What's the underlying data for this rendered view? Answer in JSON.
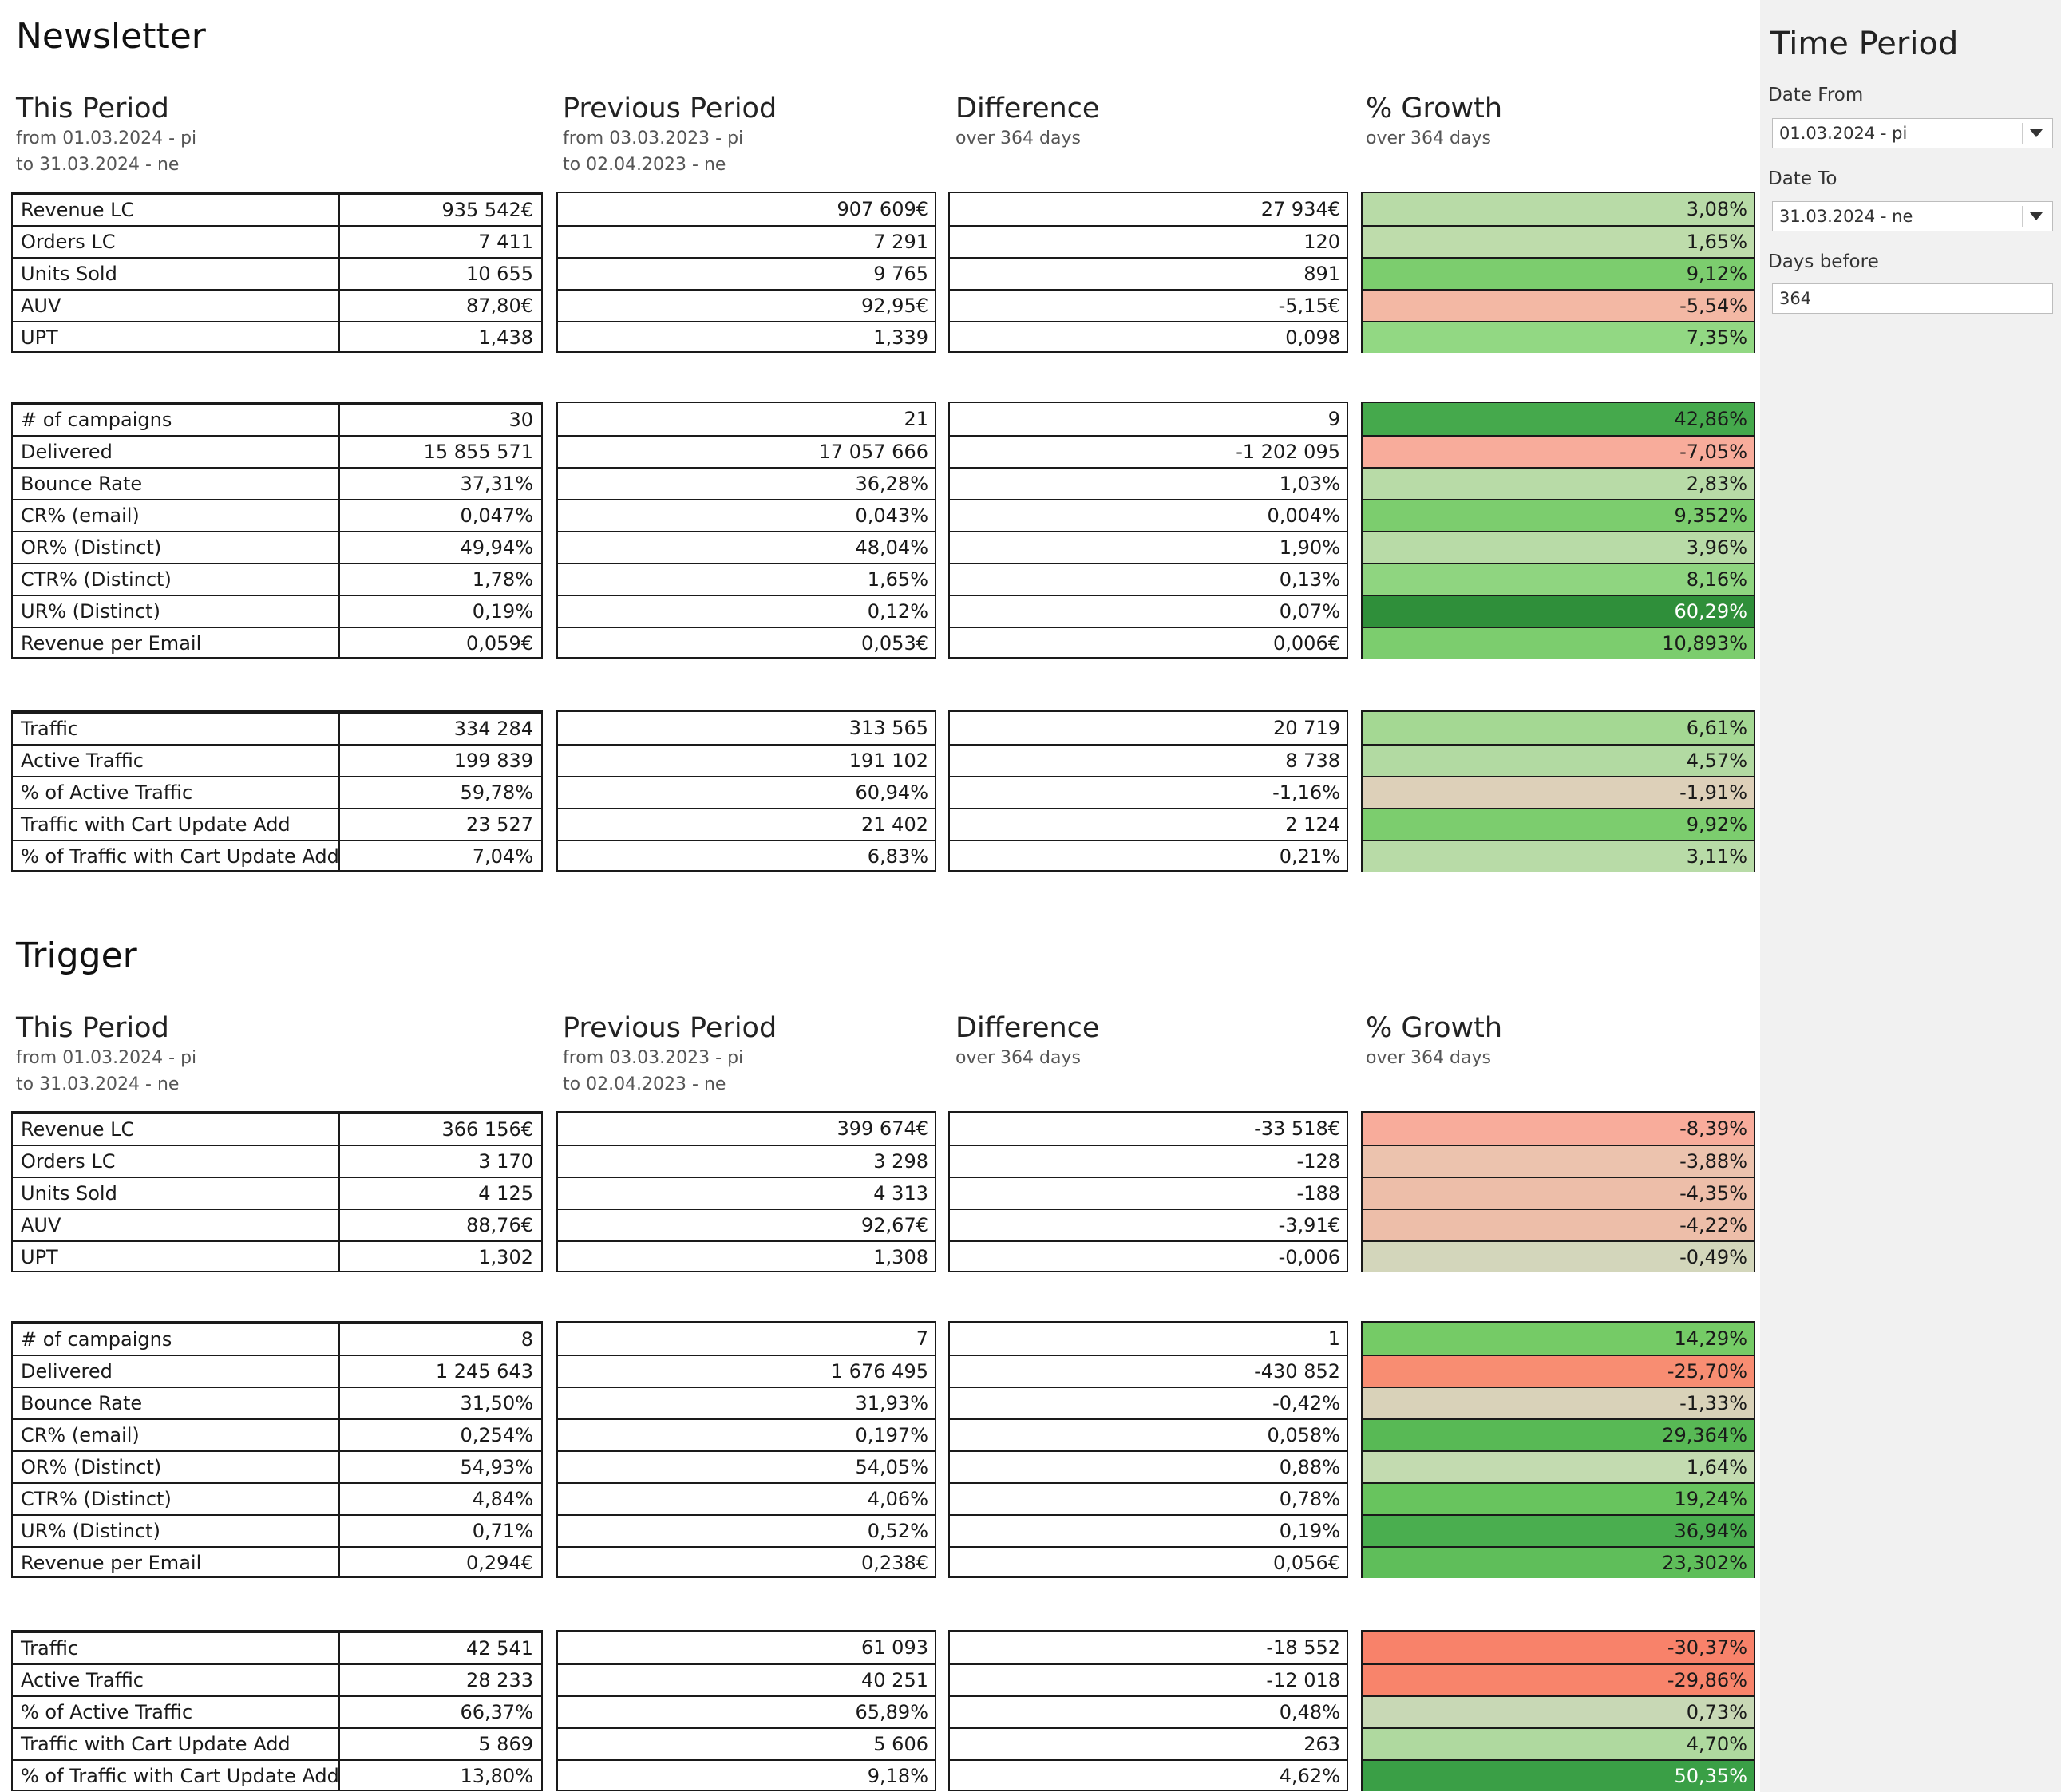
{
  "sidebar": {
    "title": "Time Period",
    "date_from_label": "Date From",
    "date_from_value": "01.03.2024 - pi",
    "date_to_label": "Date To",
    "date_to_value": "31.03.2024 - ne",
    "days_before_label": "Days before",
    "days_before_value": "364"
  },
  "sections": [
    {
      "title": "Newsletter",
      "headers": {
        "this": {
          "title": "This Period",
          "line1": "from 01.03.2024 - pi",
          "line2": "to 31.03.2024 - ne"
        },
        "prev": {
          "title": "Previous Period",
          "line1": "from 03.03.2023 - pi",
          "line2": "to 02.04.2023 - ne"
        },
        "diff": {
          "title": "Difference",
          "line1": "over 364 days"
        },
        "growth": {
          "title": "% Growth",
          "line1": "over 364 days"
        }
      },
      "groups": [
        {
          "rows": [
            {
              "label": "Revenue LC",
              "this": "935 542€",
              "prev": "907 609€",
              "diff": "27 934€",
              "growth": "3,08%",
              "growth_color": "#b8dba7"
            },
            {
              "label": "Orders LC",
              "this": "7 411",
              "prev": "7 291",
              "diff": "120",
              "growth": "1,65%",
              "growth_color": "#bedcab"
            },
            {
              "label": "Units Sold",
              "this": "10 655",
              "prev": "9 765",
              "diff": "891",
              "growth": "9,12%",
              "growth_color": "#7ccd6e"
            },
            {
              "label": "AUV",
              "this": "87,80€",
              "prev": "92,95€",
              "diff": "-5,15€",
              "growth": "-5,54%",
              "growth_color": "#f3b8a4"
            },
            {
              "label": "UPT",
              "this": "1,438",
              "prev": "1,339",
              "diff": "0,098",
              "growth": "7,35%",
              "growth_color": "#92d883"
            }
          ]
        },
        {
          "rows": [
            {
              "label": "# of campaigns",
              "this": "30",
              "prev": "21",
              "diff": "9",
              "growth": "42,86%",
              "growth_color": "#45a94c"
            },
            {
              "label": "Delivered",
              "this": "15 855 571",
              "prev": "17 057 666",
              "diff": "-1 202 095",
              "growth": "-7,05%",
              "growth_color": "#f8ac9b"
            },
            {
              "label": "Bounce Rate",
              "this": "37,31%",
              "prev": "36,28%",
              "diff": "1,03%",
              "growth": "2,83%",
              "growth_color": "#b8dba7"
            },
            {
              "label": "CR% (email)",
              "this": "0,047%",
              "prev": "0,043%",
              "diff": "0,004%",
              "growth": "9,352%",
              "growth_color": "#7ccd6e"
            },
            {
              "label": "OR% (Distinct)",
              "this": "49,94%",
              "prev": "48,04%",
              "diff": "1,90%",
              "growth": "3,96%",
              "growth_color": "#b8dba7"
            },
            {
              "label": "CTR% (Distinct)",
              "this": "1,78%",
              "prev": "1,65%",
              "diff": "0,13%",
              "growth": "8,16%",
              "growth_color": "#8fd580"
            },
            {
              "label": "UR% (Distinct)",
              "this": "0,19%",
              "prev": "0,12%",
              "diff": "0,07%",
              "growth": "60,29%",
              "growth_color": "#2f8f3a",
              "growth_text_color": "#ffffff"
            },
            {
              "label": "Revenue per Email",
              "this": "0,059€",
              "prev": "0,053€",
              "diff": "0,006€",
              "growth": "10,893%",
              "growth_color": "#7ccd6e"
            }
          ]
        },
        {
          "rows": [
            {
              "label": "Traffic",
              "this": "334 284",
              "prev": "313 565",
              "diff": "20 719",
              "growth": "6,61%",
              "growth_color": "#a4d893"
            },
            {
              "label": "Active Traffic",
              "this": "199 839",
              "prev": "191 102",
              "diff": "8 738",
              "growth": "4,57%",
              "growth_color": "#b2daa2"
            },
            {
              "label": "% of Active Traffic",
              "this": "59,78%",
              "prev": "60,94%",
              "diff": "-1,16%",
              "growth": "-1,91%",
              "growth_color": "#ddd0b9"
            },
            {
              "label": "Traffic with Cart Update Add",
              "this": "23 527",
              "prev": "21 402",
              "diff": "2 124",
              "growth": "9,92%",
              "growth_color": "#7ccd6e"
            },
            {
              "label": "% of Traffic with Cart Update Add",
              "this": "7,04%",
              "prev": "6,83%",
              "diff": "0,21%",
              "growth": "3,11%",
              "growth_color": "#b8dba7"
            }
          ]
        }
      ]
    },
    {
      "title": "Trigger",
      "headers": {
        "this": {
          "title": "This Period",
          "line1": "from 01.03.2024 - pi",
          "line2": "to 31.03.2024 - ne"
        },
        "prev": {
          "title": "Previous Period",
          "line1": "from 03.03.2023 - pi",
          "line2": "to 02.04.2023 - ne"
        },
        "diff": {
          "title": "Difference",
          "line1": "over 364 days"
        },
        "growth": {
          "title": "% Growth",
          "line1": "over 364 days"
        }
      },
      "groups": [
        {
          "rows": [
            {
              "label": "Revenue LC",
              "this": "366 156€",
              "prev": "399 674€",
              "diff": "-33 518€",
              "growth": "-8,39%",
              "growth_color": "#f8ac9b"
            },
            {
              "label": "Orders LC",
              "this": "3 170",
              "prev": "3 298",
              "diff": "-128",
              "growth": "-3,88%",
              "growth_color": "#ecc3ae"
            },
            {
              "label": "Units Sold",
              "this": "4 125",
              "prev": "4 313",
              "diff": "-188",
              "growth": "-4,35%",
              "growth_color": "#edbea9"
            },
            {
              "label": "AUV",
              "this": "88,76€",
              "prev": "92,67€",
              "diff": "-3,91€",
              "growth": "-4,22%",
              "growth_color": "#edbea9"
            },
            {
              "label": "UPT",
              "this": "1,302",
              "prev": "1,308",
              "diff": "-0,006",
              "growth": "-0,49%",
              "growth_color": "#d3d6bb"
            }
          ]
        },
        {
          "rows": [
            {
              "label": "# of campaigns",
              "this": "8",
              "prev": "7",
              "diff": "1",
              "growth": "14,29%",
              "growth_color": "#75cb66"
            },
            {
              "label": "Delivered",
              "this": "1 245 643",
              "prev": "1 676 495",
              "diff": "-430 852",
              "growth": "-25,70%",
              "growth_color": "#f88d72"
            },
            {
              "label": "Bounce Rate",
              "this": "31,50%",
              "prev": "31,93%",
              "diff": "-0,42%",
              "growth": "-1,33%",
              "growth_color": "#d9d2b9"
            },
            {
              "label": "CR% (email)",
              "this": "0,254%",
              "prev": "0,197%",
              "diff": "0,058%",
              "growth": "29,364%",
              "growth_color": "#58b955"
            },
            {
              "label": "OR% (Distinct)",
              "this": "54,93%",
              "prev": "54,05%",
              "diff": "0,88%",
              "growth": "1,64%",
              "growth_color": "#c3dbb0"
            },
            {
              "label": "CTR% (Distinct)",
              "this": "4,84%",
              "prev": "4,06%",
              "diff": "0,78%",
              "growth": "19,24%",
              "growth_color": "#68c45e"
            },
            {
              "label": "UR% (Distinct)",
              "this": "0,71%",
              "prev": "0,52%",
              "diff": "0,19%",
              "growth": "36,94%",
              "growth_color": "#4aae4f"
            },
            {
              "label": "Revenue per Email",
              "this": "0,294€",
              "prev": "0,238€",
              "diff": "0,056€",
              "growth": "23,302%",
              "growth_color": "#5fbe5a"
            }
          ]
        },
        {
          "rows": [
            {
              "label": "Traffic",
              "this": "42 541",
              "prev": "61 093",
              "diff": "-18 552",
              "growth": "-30,37%",
              "growth_color": "#f8826a"
            },
            {
              "label": "Active Traffic",
              "this": "28 233",
              "prev": "40 251",
              "diff": "-12 018",
              "growth": "-29,86%",
              "growth_color": "#f8846b"
            },
            {
              "label": "% of Active Traffic",
              "this": "66,37%",
              "prev": "65,89%",
              "diff": "0,48%",
              "growth": "0,73%",
              "growth_color": "#c8d8b5"
            },
            {
              "label": "Traffic with Cart Update Add",
              "this": "5 869",
              "prev": "5 606",
              "diff": "263",
              "growth": "4,70%",
              "growth_color": "#afd99f"
            },
            {
              "label": "% of Traffic with Cart Update Add",
              "this": "13,80%",
              "prev": "9,18%",
              "diff": "4,62%",
              "growth": "50,35%",
              "growth_color": "#3a9f46",
              "growth_text_color": "#ffffff"
            }
          ]
        }
      ]
    }
  ]
}
